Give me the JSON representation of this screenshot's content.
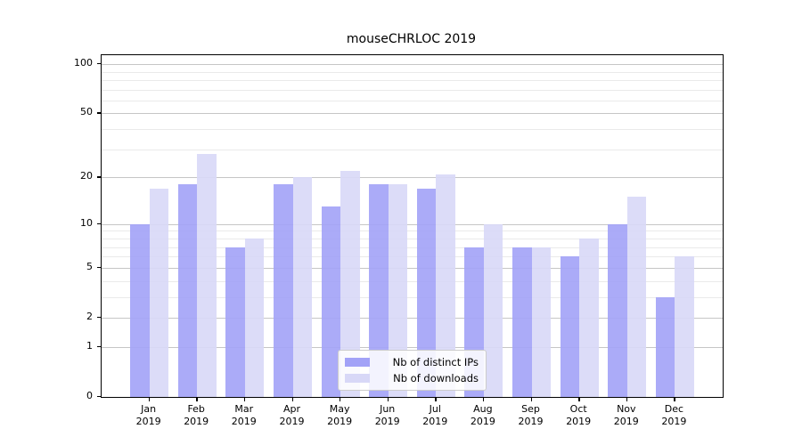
{
  "chart_data": {
    "type": "bar",
    "title": "mouseCHRLOC 2019",
    "categories": [
      "Jan",
      "Feb",
      "Mar",
      "Apr",
      "May",
      "Jun",
      "Jul",
      "Aug",
      "Sep",
      "Oct",
      "Nov",
      "Dec"
    ],
    "year_label": "2019",
    "series": [
      {
        "name": "Nb of distinct IPs",
        "color": "#a2a2f7",
        "values": [
          10,
          18,
          7,
          18,
          13,
          18,
          17,
          7,
          7,
          6,
          10,
          3
        ]
      },
      {
        "name": "Nb of downloads",
        "color": "#d8d8f7",
        "values": [
          17,
          28,
          8,
          20,
          22,
          18,
          21,
          10,
          7,
          8,
          15,
          6
        ]
      }
    ],
    "xlabel": "",
    "ylabel": "",
    "y_scale": "log10(value+1)",
    "y_axis_log_max": 2.058,
    "y_major_ticks": [
      0,
      1,
      2,
      5,
      10,
      20,
      50,
      100
    ],
    "y_minor_gridline_values": [
      3,
      4,
      6,
      7,
      8,
      9,
      30,
      40,
      60,
      70,
      80,
      90
    ],
    "grid": true,
    "legend_position": "lower center",
    "colors": {
      "major_gridline": "#c6c6c6",
      "minor_gridline": "#eaeaea",
      "axis": "#000000",
      "legend_border": "#cccccc",
      "legend_background": "rgba(255,255,255,0.85)"
    }
  }
}
